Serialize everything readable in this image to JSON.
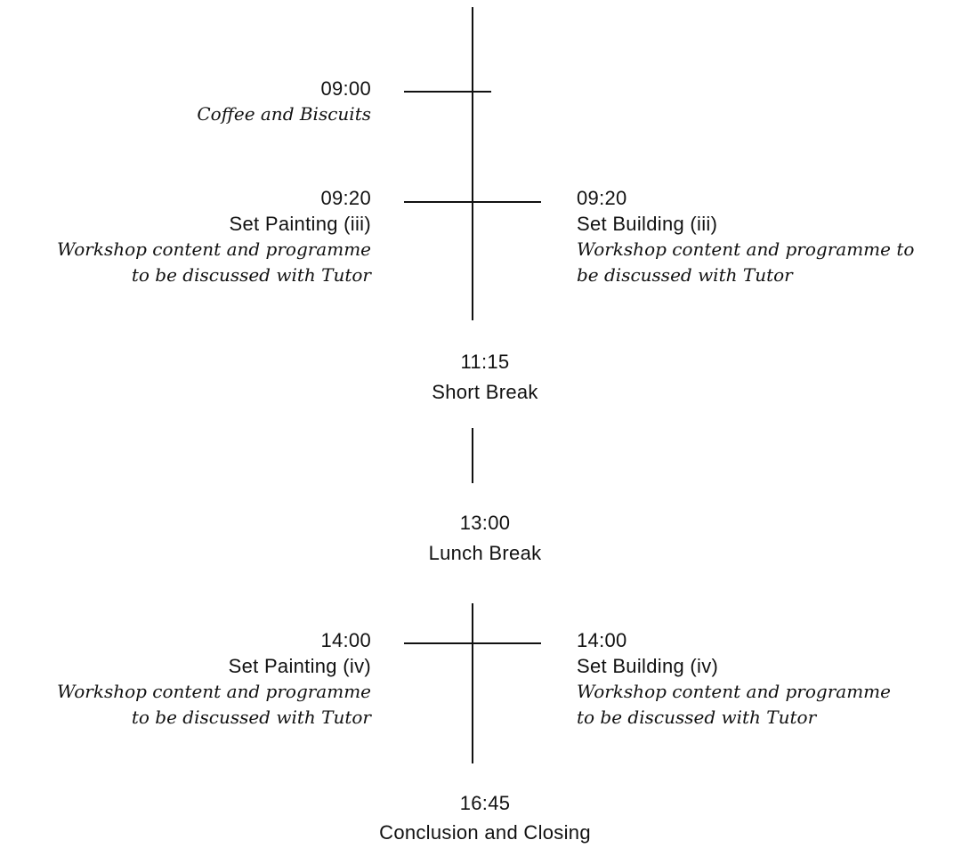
{
  "schedule": {
    "coffee": {
      "time": "09:00",
      "title": "Coffee and Biscuits"
    },
    "morning_left": {
      "time": "09:20",
      "title": "Set Painting (iii)",
      "note_line1": "Workshop content and programme",
      "note_line2": "to be discussed with Tutor"
    },
    "morning_right": {
      "time": "09:20",
      "title": "Set Building (iii)",
      "note_line1": "Workshop content and programme to",
      "note_line2": "be discussed with Tutor"
    },
    "short_break": {
      "time": "11:15",
      "title": "Short Break"
    },
    "lunch_break": {
      "time": "13:00",
      "title": "Lunch Break"
    },
    "afternoon_left": {
      "time": "14:00",
      "title": "Set Painting (iv)",
      "note_line1": "Workshop content and programme",
      "note_line2": "to be discussed with Tutor"
    },
    "afternoon_right": {
      "time": "14:00",
      "title": "Set Building (iv)",
      "note_line1": "Workshop content and programme",
      "note_line2": "to be discussed with Tutor"
    },
    "closing": {
      "time": "16:45",
      "title": "Conclusion and Closing"
    }
  },
  "colors": {
    "ink": "#111111",
    "background": "#ffffff"
  }
}
